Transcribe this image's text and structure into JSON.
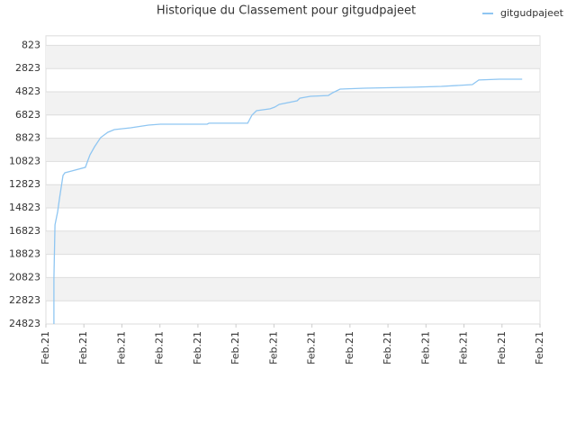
{
  "chart_data": {
    "type": "line",
    "title": "Historique du Classement pour gitgudpajeet",
    "series": [
      {
        "name": "gitgudpajeet",
        "color": "#8fc6f2",
        "x": [
          0.21,
          0.21,
          0.24,
          0.31,
          0.36,
          0.45,
          0.5,
          0.69,
          1.04,
          1.09,
          1.16,
          1.28,
          1.44,
          1.63,
          1.8,
          2.23,
          2.7,
          3.01,
          4.24,
          4.29,
          5.31,
          5.42,
          5.54,
          5.9,
          6.02,
          6.14,
          6.61,
          6.68,
          6.96,
          7.43,
          7.55,
          7.74,
          8.38,
          9.68,
          10.4,
          11.22,
          11.39,
          11.93,
          12.53
        ],
        "values": [
          24823,
          20940,
          16290,
          15130,
          13960,
          12030,
          11800,
          11640,
          11330,
          10870,
          10250,
          9550,
          8770,
          8310,
          8080,
          7920,
          7690,
          7610,
          7610,
          7530,
          7530,
          6840,
          6450,
          6290,
          6140,
          5910,
          5600,
          5370,
          5210,
          5140,
          4900,
          4590,
          4510,
          4430,
          4360,
          4200,
          3810,
          3740,
          3740
        ]
      }
    ],
    "xlim": [
      0,
      13
    ],
    "xticks": [
      {
        "value": 0,
        "label": "Feb.21"
      },
      {
        "value": 1,
        "label": "Feb.21"
      },
      {
        "value": 2,
        "label": "Feb.21"
      },
      {
        "value": 3,
        "label": "Feb.21"
      },
      {
        "value": 4,
        "label": "Feb.21"
      },
      {
        "value": 5,
        "label": "Feb.21"
      },
      {
        "value": 6,
        "label": "Feb.21"
      },
      {
        "value": 7,
        "label": "Feb.21"
      },
      {
        "value": 8,
        "label": "Feb.21"
      },
      {
        "value": 9,
        "label": "Feb.21"
      },
      {
        "value": 10,
        "label": "Feb.21"
      },
      {
        "value": 11,
        "label": "Feb.21"
      },
      {
        "value": 12,
        "label": "Feb.21"
      },
      {
        "value": 13,
        "label": "Feb.21"
      }
    ],
    "ylim": [
      0,
      24823
    ],
    "y_inverted": true,
    "yticks": [
      823,
      2823,
      4823,
      6823,
      8823,
      10823,
      12823,
      14823,
      16823,
      18823,
      20823,
      22823,
      24823
    ],
    "grid": true,
    "legend": "top-right"
  }
}
